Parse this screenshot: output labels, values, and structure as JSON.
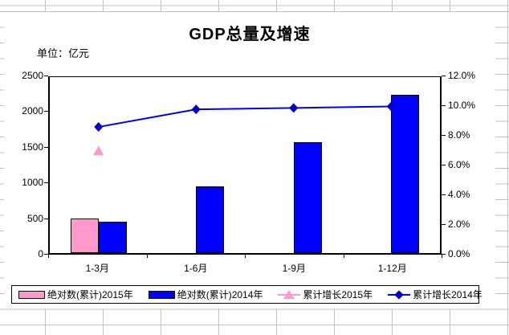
{
  "title": "GDP总量及增速",
  "unit_label": "单位：亿元",
  "chart_data": {
    "type": "bar+line",
    "title": "GDP总量及增速",
    "unit": "单位：亿元",
    "categories": [
      "1-3月",
      "1-6月",
      "1-9月",
      "1-12月"
    ],
    "bar_series": [
      {
        "name": "绝对数(累计)2015年",
        "color": "#FF99CC",
        "axis": "left",
        "values": [
          490,
          null,
          null,
          null
        ]
      },
      {
        "name": "绝对数(累计)2014年",
        "color": "#0000FF",
        "axis": "left",
        "values": [
          450,
          950,
          1575,
          2250
        ]
      }
    ],
    "line_series": [
      {
        "name": "累计增长2015年",
        "color": "#FF99CC",
        "marker": "triangle",
        "marker_color": "#FF99CC",
        "axis": "right",
        "values": [
          7.0,
          null,
          null,
          null
        ]
      },
      {
        "name": "累计增长2014年",
        "color": "#0000FF",
        "marker": "diamond",
        "marker_color": "#0000CC",
        "axis": "right",
        "values": [
          8.6,
          9.8,
          9.9,
          10.0
        ]
      }
    ],
    "left_axis": {
      "min": 0,
      "max": 2500,
      "step": 500,
      "tick_labels": [
        "0",
        "500",
        "1000",
        "1500",
        "2000",
        "2500"
      ]
    },
    "right_axis": {
      "min": 0,
      "max": 12,
      "step": 2,
      "tick_labels": [
        "0.0%",
        "2.0%",
        "4.0%",
        "6.0%",
        "8.0%",
        "10.0%",
        "12.0%"
      ]
    },
    "grid": false,
    "legend_position": "bottom"
  }
}
